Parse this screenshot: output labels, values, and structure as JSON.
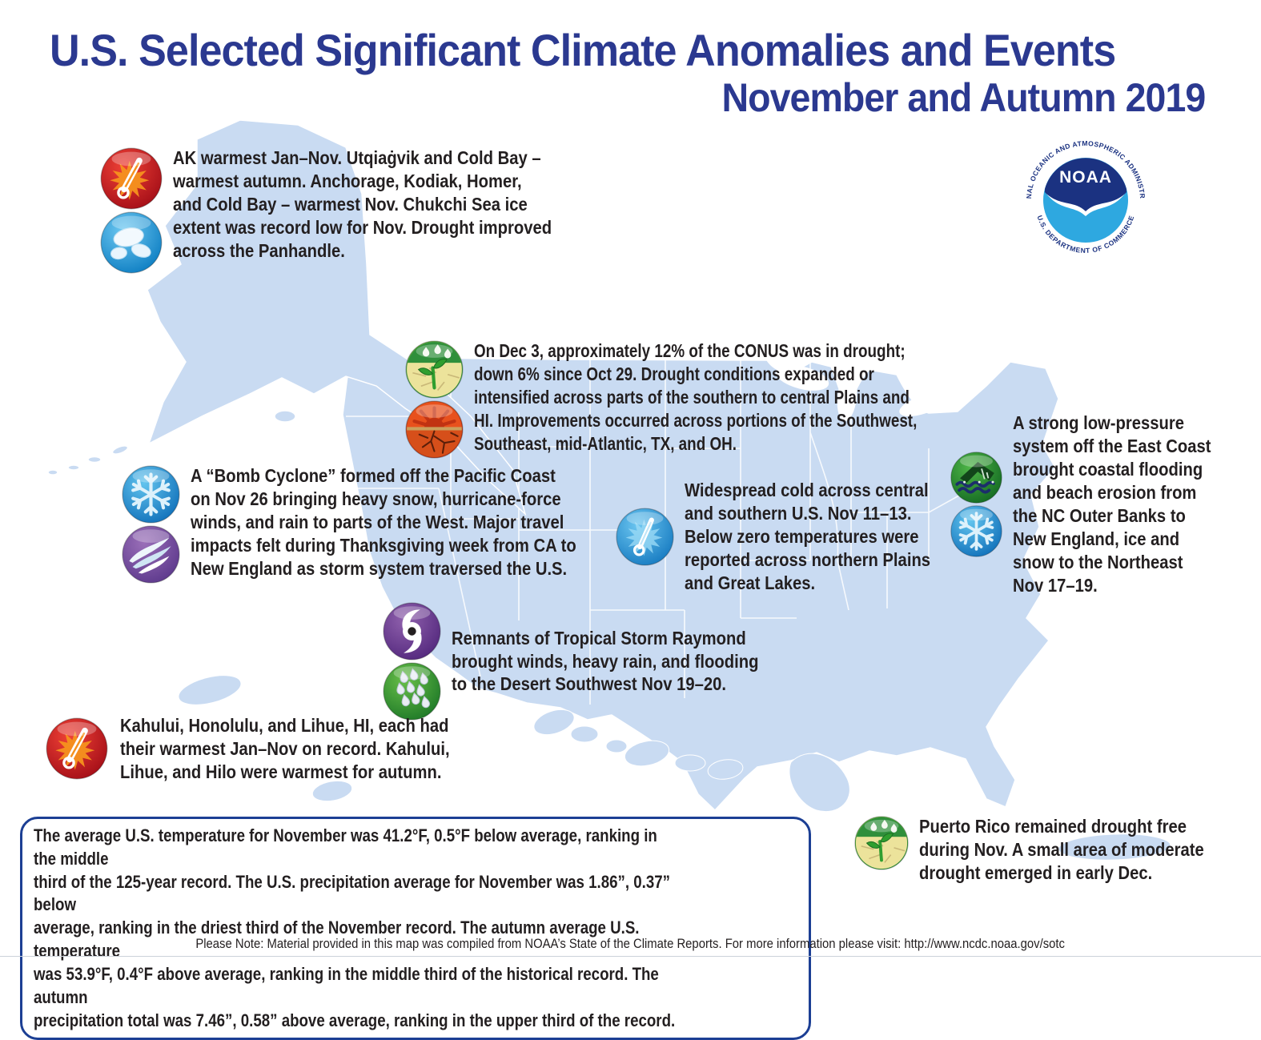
{
  "title": {
    "line1": "U.S. Selected Significant Climate Anomalies and Events",
    "line2": "November and Autumn 2019"
  },
  "logo": {
    "acronym": "NOAA",
    "arc_top": "NATIONAL OCEANIC AND ATMOSPHERIC ADMINISTRATION",
    "arc_bottom": "U.S. DEPARTMENT OF COMMERCE"
  },
  "callouts": {
    "alaska": {
      "icons": [
        "hot-thermometer-icon",
        "sea-ice-icon"
      ],
      "text": "AK warmest Jan–Nov. Utqiaġvik and Cold Bay –\nwarmest autumn. Anchorage, Kodiak, Homer,\nand Cold Bay – warmest Nov. Chukchi Sea ice\nextent was record low for Nov. Drought improved\nacross the Panhandle."
    },
    "drought": {
      "icons": [
        "drought-improvement-icon",
        "drought-icon"
      ],
      "text": "On Dec 3, approximately 12% of the CONUS was in drought;\ndown 6% since Oct 29. Drought conditions expanded or\nintensified across parts of the southern to central Plains and\nHI. Improvements occurred across portions of the Southwest,\nSoutheast, mid-Atlantic, TX, and OH."
    },
    "bomb_cyclone": {
      "icons": [
        "snowflake-icon",
        "wind-icon"
      ],
      "text": "A “Bomb Cyclone” formed off the Pacific Coast\non Nov 26 bringing heavy snow, hurricane-force\nwinds, and rain to parts of the West. Major travel\nimpacts felt during Thanksgiving week from CA to\nNew England as storm system traversed the U.S."
    },
    "widespread_cold": {
      "icons": [
        "cold-thermometer-icon"
      ],
      "text": "Widespread cold across central\nand southern U.S. Nov 11–13.\nBelow zero temperatures were\nreported across northern Plains\nand Great Lakes."
    },
    "east_coast": {
      "icons": [
        "coastal-flood-icon",
        "snowflake-icon"
      ],
      "text": "A strong low-pressure\nsystem off the East Coast\nbrought coastal flooding\nand beach erosion from\nthe NC Outer Banks to\nNew England, ice and\nsnow to the Northeast\nNov 17–19."
    },
    "tropical_storm_raymond": {
      "icons": [
        "hurricane-icon",
        "heavy-rain-icon"
      ],
      "text": "Remnants of Tropical Storm Raymond\nbrought winds, heavy rain, and flooding\nto the Desert Southwest Nov 19–20."
    },
    "hawaii": {
      "icons": [
        "hot-thermometer-icon"
      ],
      "text": "Kahului, Honolulu, and Lihue, HI, each had\ntheir warmest Jan–Nov on record. Kahului,\nLihue, and Hilo were warmest for autumn."
    },
    "puerto_rico": {
      "icons": [
        "drought-improvement-icon"
      ],
      "text": "Puerto Rico remained drought free\nduring Nov. A small area of moderate\ndrought emerged in early Dec."
    }
  },
  "summary_box": {
    "text": "The average U.S. temperature for November was 41.2°F, 0.5°F below average, ranking in the middle\nthird of the 125-year record. The U.S. precipitation average for November was 1.86”, 0.37” below\naverage, ranking in the driest third of the November record. The autumn average U.S. temperature\nwas 53.9°F, 0.4°F above average, ranking in the middle third of the historical record. The autumn\nprecipitation total was 7.46”, 0.58” above average, ranking in the upper third of the record."
  },
  "footer_note": "Please Note: Material provided in this map was compiled from NOAA’s State of the Climate Reports. For more information please visit: http://www.ncdc.noaa.gov/sotc",
  "colors": {
    "title": "#2b3990",
    "body_text": "#231f20",
    "map_fill": "#c9dbf2",
    "summary_border": "#1c3f94",
    "logo_dark_blue": "#1b3281",
    "logo_light_blue": "#2ea8e0"
  }
}
